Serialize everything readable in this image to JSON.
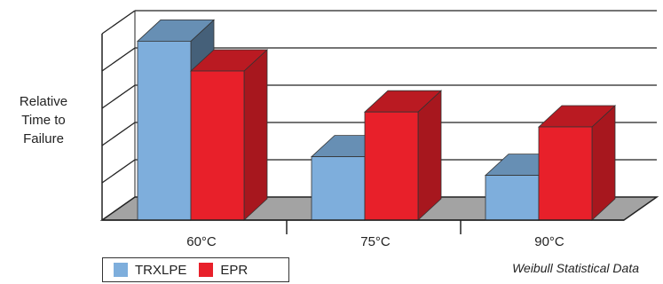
{
  "chart_data": {
    "type": "bar",
    "title": "",
    "xlabel": "",
    "ylabel": "Relative Time to Failure",
    "ylabel_lines": [
      "Relative",
      "Time to",
      "Failure"
    ],
    "categories": [
      "60°C",
      "75°C",
      "90°C"
    ],
    "series": [
      {
        "name": "TRXLPE",
        "values": [
          4.8,
          1.7,
          1.2
        ],
        "color": "#7eaedc"
      },
      {
        "name": "EPR",
        "values": [
          4.0,
          2.9,
          2.5
        ],
        "color": "#e8202a"
      }
    ],
    "ylim": [
      0,
      5
    ],
    "grid": true,
    "style": "3d",
    "legend": "bottom-left",
    "note": "Weibull Statistical Data"
  }
}
